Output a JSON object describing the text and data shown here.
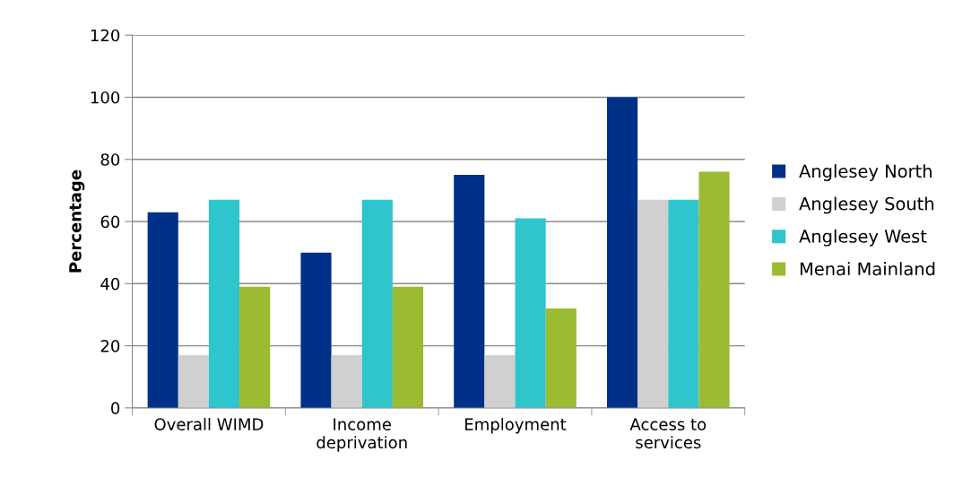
{
  "chart_data": {
    "type": "bar",
    "ylabel": "Percentage",
    "categories": [
      "Overall WIMD",
      "Income\ndeprivation",
      "Employment",
      "Access to\nservices"
    ],
    "series": [
      {
        "name": "Anglesey North",
        "color": "#003087",
        "values": [
          63,
          50,
          75,
          100
        ]
      },
      {
        "name": "Anglesey South",
        "color": "#d0d0d0",
        "values": [
          17,
          17,
          17,
          67
        ]
      },
      {
        "name": "Anglesey West",
        "color": "#2ec5cd",
        "values": [
          67,
          67,
          61,
          67
        ]
      },
      {
        "name": "Menai Mainland",
        "color": "#9bbb33",
        "values": [
          39,
          39,
          32,
          76
        ]
      }
    ],
    "ylim": [
      0,
      120
    ],
    "yticks": [
      0,
      20,
      40,
      60,
      80,
      100,
      120
    ],
    "grid": "y",
    "legend": "right"
  }
}
